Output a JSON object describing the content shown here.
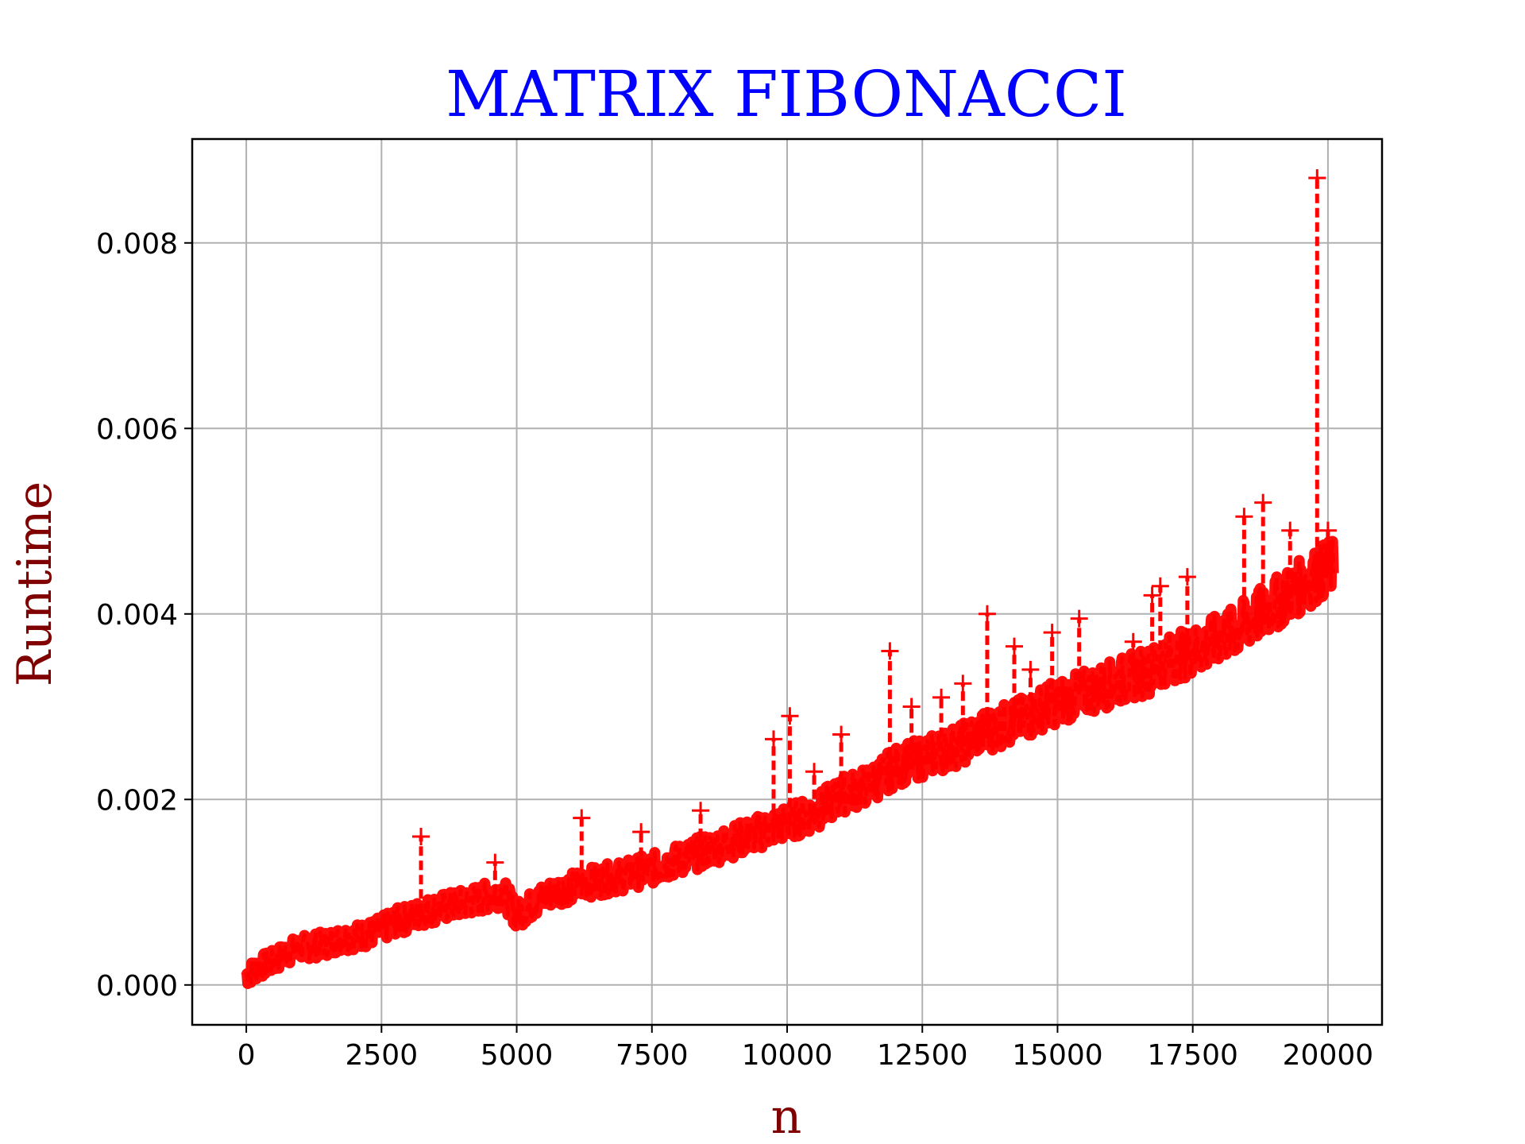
{
  "chart_data": {
    "type": "line",
    "title": "MATRIX FIBONACCI",
    "xlabel": "n",
    "ylabel": "Runtime",
    "xlim": [
      -1000,
      21000
    ],
    "ylim": [
      -0.00043,
      0.00912
    ],
    "x_ticks": [
      0,
      2500,
      5000,
      7500,
      10000,
      12500,
      15000,
      17500,
      20000
    ],
    "x_tick_labels": [
      "0",
      "2500",
      "5000",
      "7500",
      "10000",
      "12500",
      "15000",
      "17500",
      "20000"
    ],
    "y_ticks": [
      0.0,
      0.002,
      0.004,
      0.006,
      0.008
    ],
    "y_tick_labels": [
      "0.000",
      "0.002",
      "0.004",
      "0.006",
      "0.008"
    ],
    "grid": true,
    "legend": "none",
    "marker": "+",
    "line_style": "dashed",
    "series_color": "#ff0000",
    "series": [
      {
        "x": [
          0,
          250,
          500,
          750,
          1000,
          1250,
          1500,
          1750,
          2000,
          2250,
          2500,
          2750,
          3000,
          3250,
          3500,
          3750,
          4000,
          4250,
          4500,
          4750,
          5000,
          5250,
          5500,
          5750,
          6000,
          6250,
          6500,
          6750,
          7000,
          7250,
          7500,
          7750,
          8000,
          8250,
          8500,
          8750,
          9000,
          9250,
          9500,
          9750,
          10000,
          10250,
          10500,
          10750,
          11000,
          11250,
          11500,
          11750,
          12000,
          12250,
          12500,
          12750,
          13000,
          13250,
          13500,
          13750,
          14000,
          14250,
          14500,
          14750,
          15000,
          15250,
          15500,
          15750,
          16000,
          16250,
          16500,
          16750,
          17000,
          17250,
          17500,
          17750,
          18000,
          18250,
          18500,
          18750,
          19000,
          19250,
          19500,
          19750,
          20000
        ],
        "y": [
          0.0001,
          0.0002,
          0.00025,
          0.00035,
          0.0004,
          0.00042,
          0.00045,
          0.0005,
          0.00052,
          0.00055,
          0.0006,
          0.00068,
          0.00072,
          0.00078,
          0.00082,
          0.00085,
          0.00088,
          0.00092,
          0.00096,
          0.001,
          0.00075,
          0.00085,
          0.00095,
          0.00102,
          0.00105,
          0.0011,
          0.00112,
          0.00115,
          0.00118,
          0.00122,
          0.00125,
          0.0013,
          0.00135,
          0.0014,
          0.00145,
          0.0015,
          0.00155,
          0.0016,
          0.00165,
          0.0017,
          0.00175,
          0.0018,
          0.00185,
          0.00195,
          0.00205,
          0.0021,
          0.00215,
          0.00225,
          0.00235,
          0.0024,
          0.00245,
          0.0025,
          0.00255,
          0.0026,
          0.0027,
          0.00275,
          0.0028,
          0.00285,
          0.0029,
          0.003,
          0.00305,
          0.0031,
          0.00315,
          0.0032,
          0.00325,
          0.0033,
          0.00335,
          0.0034,
          0.0035,
          0.00355,
          0.0036,
          0.00365,
          0.00375,
          0.0038,
          0.0039,
          0.004,
          0.0041,
          0.0042,
          0.0043,
          0.0044,
          0.0045
        ],
        "outliers": [
          {
            "x": 3230,
            "y": 0.0016
          },
          {
            "x": 4600,
            "y": 0.00132
          },
          {
            "x": 6200,
            "y": 0.0018
          },
          {
            "x": 7300,
            "y": 0.00165
          },
          {
            "x": 8400,
            "y": 0.00188
          },
          {
            "x": 9750,
            "y": 0.00265
          },
          {
            "x": 10050,
            "y": 0.0029
          },
          {
            "x": 10500,
            "y": 0.0023
          },
          {
            "x": 11000,
            "y": 0.0027
          },
          {
            "x": 11900,
            "y": 0.0036
          },
          {
            "x": 12300,
            "y": 0.003
          },
          {
            "x": 12850,
            "y": 0.0031
          },
          {
            "x": 13250,
            "y": 0.00325
          },
          {
            "x": 13700,
            "y": 0.004
          },
          {
            "x": 14200,
            "y": 0.00365
          },
          {
            "x": 14500,
            "y": 0.0034
          },
          {
            "x": 14900,
            "y": 0.0038
          },
          {
            "x": 15400,
            "y": 0.00395
          },
          {
            "x": 16400,
            "y": 0.0037
          },
          {
            "x": 16750,
            "y": 0.0042
          },
          {
            "x": 16900,
            "y": 0.0043
          },
          {
            "x": 17400,
            "y": 0.0044
          },
          {
            "x": 18450,
            "y": 0.00505
          },
          {
            "x": 18800,
            "y": 0.0052
          },
          {
            "x": 19300,
            "y": 0.0049
          },
          {
            "x": 19800,
            "y": 0.0087
          },
          {
            "x": 20000,
            "y": 0.0049
          }
        ]
      }
    ]
  }
}
